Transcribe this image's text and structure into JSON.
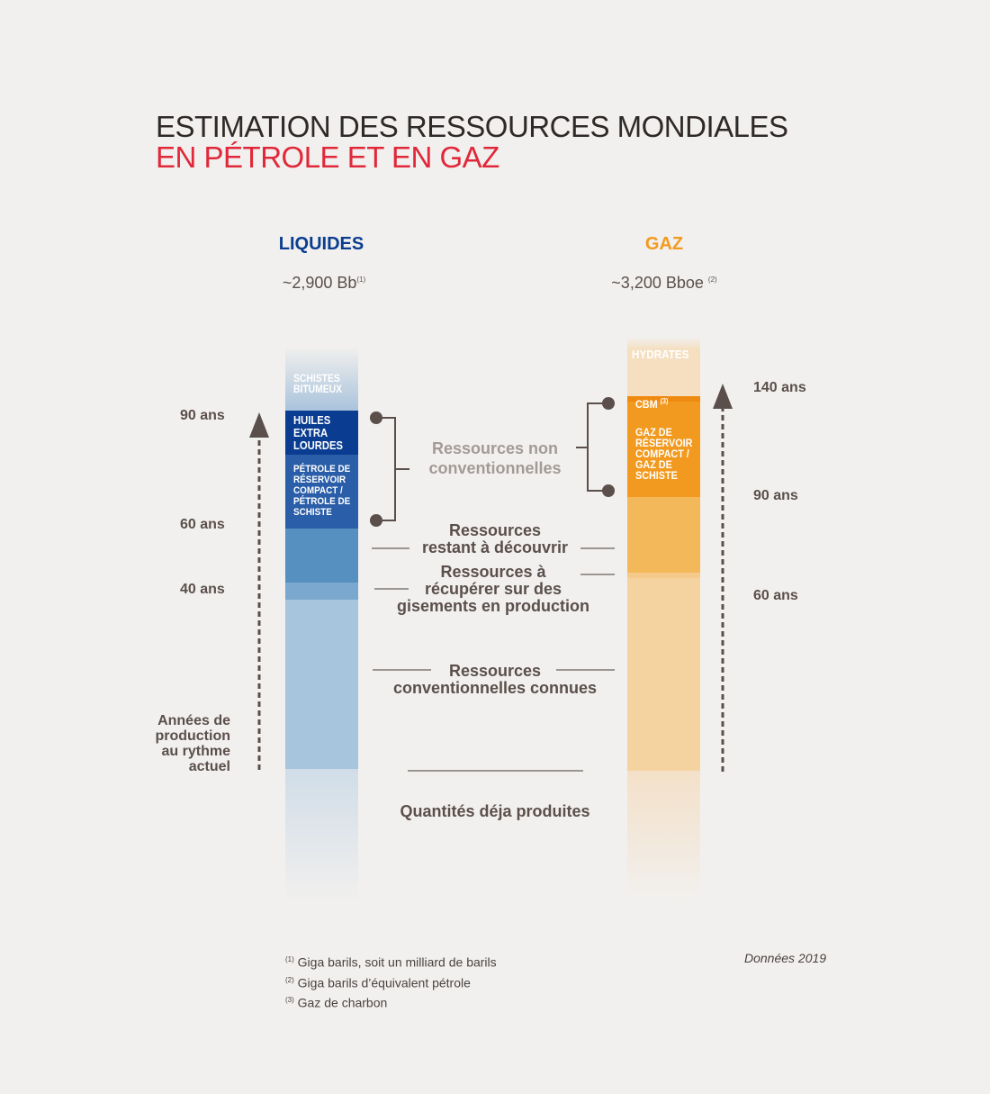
{
  "title": {
    "line1": "ESTIMATION DES RESSOURCES MONDIALES",
    "line2": "EN PÉTROLE ET EN GAZ"
  },
  "colors": {
    "accent_red": "#e0283a",
    "liquids": "#0a3d91",
    "gas": "#f29a1f"
  },
  "liquids": {
    "label": "LIQUIDES",
    "total": "~2,900 Bb",
    "total_note": "(1)",
    "segments": [
      "SCHISTES BITUMEUX",
      "HUILES EXTRA LOURDES",
      "PÉTROLE DE RÉSERVOIR COMPACT / PÉTROLE DE SCHISTE"
    ],
    "years": [
      "90 ans",
      "60 ans",
      "40 ans"
    ],
    "axis_label": [
      "Années de",
      "production",
      "au rythme",
      "actuel"
    ]
  },
  "gas": {
    "label": "GAZ",
    "total": "~3,200 Bboe",
    "total_note": "(2)",
    "segments": [
      "HYDRATES",
      "CBM",
      "GAZ DE RÉSERVOIR COMPACT / GAZ DE SCHISTE"
    ],
    "cbm_note": "(3)",
    "years": [
      "140 ans",
      "90 ans",
      "60 ans"
    ]
  },
  "categories": {
    "unconventional": [
      "Ressources non",
      "conventionnelles"
    ],
    "to_discover": [
      "Ressources",
      "restant à découvrir"
    ],
    "to_recover": [
      "Ressources à",
      "récupérer sur des",
      "gisements en production"
    ],
    "known": [
      "Ressources",
      "conventionnelles connues"
    ],
    "produced": "Quantités déja produites"
  },
  "footnotes": [
    {
      "mark": "(1)",
      "text": "Giga barils, soit un milliard de barils"
    },
    {
      "mark": "(2)",
      "text": "Giga barils d’équivalent pétrole"
    },
    {
      "mark": "(3)",
      "text": "Gaz de charbon"
    }
  ],
  "source": "Données 2019"
}
